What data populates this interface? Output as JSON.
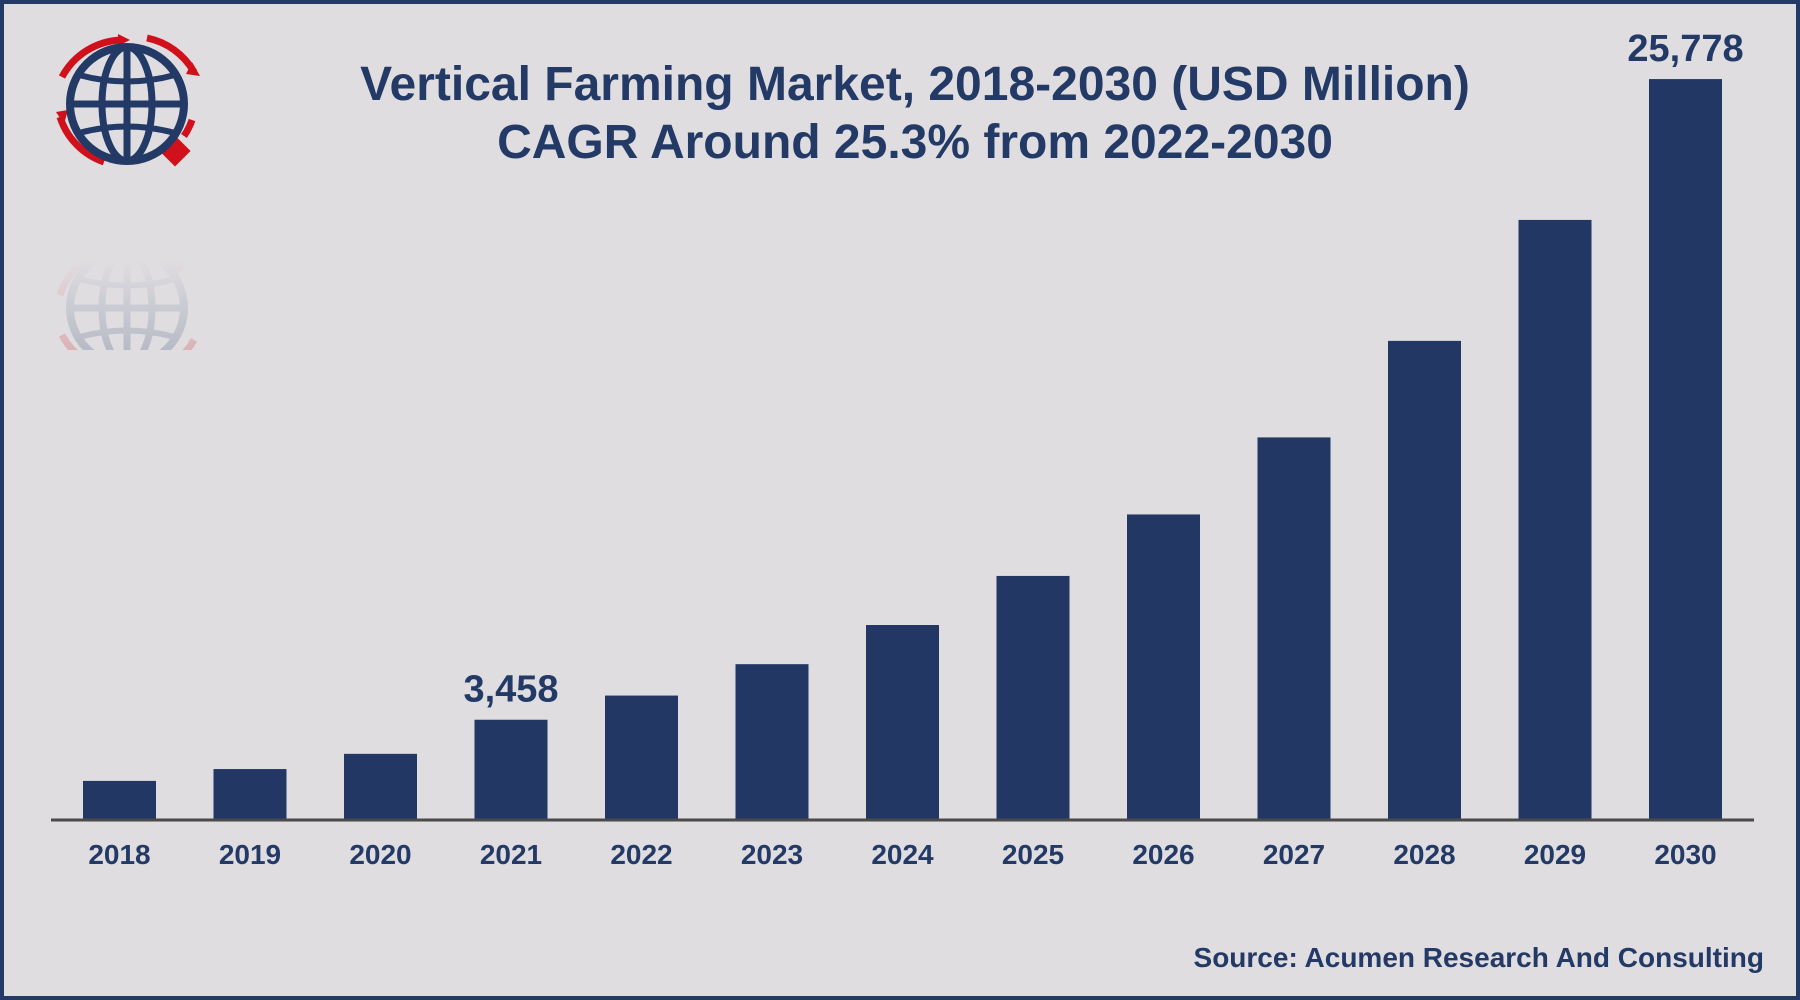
{
  "chart_data": {
    "type": "bar",
    "title": "Vertical Farming Market, 2018-2030 (USD Million)",
    "subtitle": "CAGR Around 25.3% from 2022-2030",
    "categories": [
      "2018",
      "2019",
      "2020",
      "2021",
      "2022",
      "2023",
      "2024",
      "2025",
      "2026",
      "2027",
      "2028",
      "2029",
      "2030"
    ],
    "values": [
      1327,
      1740,
      2270,
      3458,
      4300,
      5394,
      6758,
      8468,
      10610,
      13294,
      16657,
      20871,
      25778
    ],
    "labeled_values": {
      "2021": "3,458",
      "2030": "25,778"
    },
    "ylim": [
      0,
      27000
    ],
    "grid": false,
    "legend": "none",
    "bar_color": "#223764"
  },
  "source": "Source: Acumen Research And Consulting",
  "colors": {
    "title": "#233a66",
    "background": "#dfdde0",
    "logo_blue": "#233a66",
    "logo_red": "#d0101a"
  },
  "logo_icon": "globe-logo-icon"
}
